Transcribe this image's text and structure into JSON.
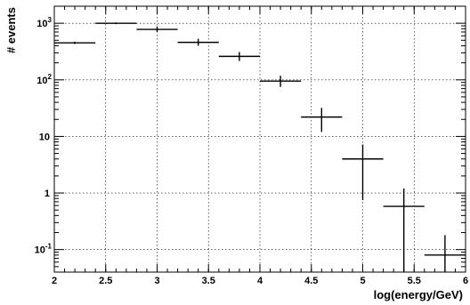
{
  "chart_data": {
    "type": "scatter",
    "title": "",
    "xlabel": "log(energy/GeV)",
    "ylabel": "# events",
    "xlim": [
      2,
      6
    ],
    "ylim": [
      0.04,
      2000
    ],
    "yscale": "log",
    "grid": true,
    "x_ticks": [
      2,
      2.5,
      3,
      3.5,
      4,
      4.5,
      5,
      5.5,
      6
    ],
    "x_tick_labels": [
      "2",
      "2.5",
      "3",
      "3.5",
      "4",
      "4.5",
      "5",
      "5.5",
      "6"
    ],
    "y_ticks": [
      0.1,
      1,
      10,
      100,
      1000
    ],
    "y_tick_labels": [
      {
        "base": "10",
        "exp": "-1"
      },
      {
        "base": "1",
        "exp": ""
      },
      {
        "base": "10",
        "exp": ""
      },
      {
        "base": "10",
        "exp": "2"
      },
      {
        "base": "10",
        "exp": "3"
      }
    ],
    "series": [
      {
        "points": [
          {
            "x": 2.2,
            "xerr": 0.2,
            "y": 450,
            "ylo": 430,
            "yhi": 470
          },
          {
            "x": 2.6,
            "xerr": 0.2,
            "y": 1000,
            "ylo": 965,
            "yhi": 1035
          },
          {
            "x": 3.0,
            "xerr": 0.2,
            "y": 780,
            "ylo": 700,
            "yhi": 880
          },
          {
            "x": 3.4,
            "xerr": 0.2,
            "y": 460,
            "ylo": 400,
            "yhi": 530
          },
          {
            "x": 3.8,
            "xerr": 0.2,
            "y": 260,
            "ylo": 215,
            "yhi": 310
          },
          {
            "x": 4.2,
            "xerr": 0.2,
            "y": 95,
            "ylo": 75,
            "yhi": 118
          },
          {
            "x": 4.6,
            "xerr": 0.2,
            "y": 22,
            "ylo": 12,
            "yhi": 32
          },
          {
            "x": 5.0,
            "xerr": 0.2,
            "y": 4,
            "ylo": 0.75,
            "yhi": 7.2
          },
          {
            "x": 5.4,
            "xerr": 0.2,
            "y": 0.58,
            "ylo": 0.04,
            "yhi": 1.2
          },
          {
            "x": 5.8,
            "xerr": 0.2,
            "y": 0.08,
            "ylo": 0.04,
            "yhi": 0.18
          }
        ]
      }
    ]
  }
}
